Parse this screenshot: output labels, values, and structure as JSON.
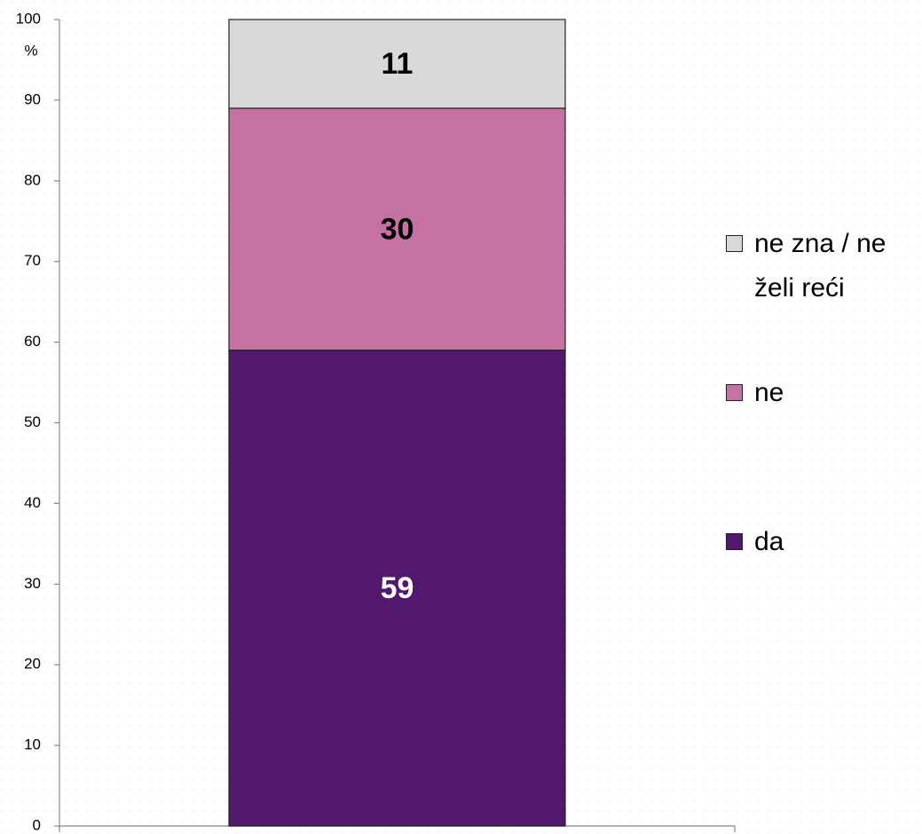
{
  "chart_data": {
    "type": "stacked_bar",
    "ylabel": "%",
    "categories": [
      null
    ],
    "series": [
      {
        "name": "da",
        "color": "#52186e",
        "values": [
          59
        ]
      },
      {
        "name": "ne",
        "color": "#c572a2",
        "values": [
          30
        ]
      },
      {
        "name": "ne zna / ne želi reći",
        "color": "#d9d9d9",
        "values": [
          11
        ]
      }
    ],
    "ylim": [
      0,
      100
    ],
    "yticks": [
      0,
      10,
      20,
      30,
      40,
      50,
      60,
      70,
      80,
      90,
      100
    ],
    "legend": "right"
  }
}
